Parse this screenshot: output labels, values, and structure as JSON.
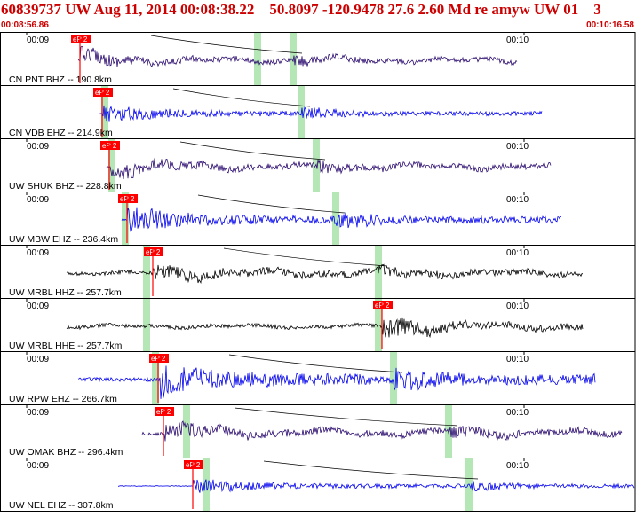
{
  "header": {
    "title": "60839737 UW Aug 11, 2014 00:08:38.22    50.8097 -120.9478 27.6 2.60 Md re amyw UW 01    3",
    "start_time": "00:08:56.86",
    "end_time": "00:10:16.58"
  },
  "colors": {
    "title": "#cc0000",
    "pick_box": "#ff0000",
    "window_shade": "#b5e6b5",
    "border": "#000000",
    "trace_purple": "#2a0a6e",
    "trace_blue": "#0000ee",
    "trace_black": "#000000"
  },
  "traces": [
    {
      "label": "CN PNT BHZ -- 190.8km",
      "color": "purple",
      "tick_left": "00:09",
      "tick_right": "00:10",
      "pick": "eP 2",
      "pick_x": 90,
      "shades": [
        290,
        330
      ],
      "onset": 88,
      "end": 582,
      "amp": 0.55,
      "noise": 0.18
    },
    {
      "label": "CN VDB EHZ -- 214.9km",
      "color": "blue",
      "tick_left": "",
      "tick_right": "",
      "pick": "eP 2",
      "pick_x": 115,
      "shades": [
        118,
        339
      ],
      "onset": 112,
      "end": 610,
      "amp": 0.35,
      "noise": 0.06
    },
    {
      "label": "UW SHUK BHZ -- 228.8km",
      "color": "purple",
      "tick_left": "00:09",
      "tick_right": "00:10",
      "pick": "eP 2",
      "pick_x": 123,
      "shades": [
        126,
        356
      ],
      "onset": 120,
      "end": 620,
      "amp": 0.55,
      "noise": 0.25
    },
    {
      "label": "UW MBW EHZ -- 236.4km",
      "color": "blue",
      "tick_left": "00:09",
      "tick_right": "00:10",
      "pick": "eP 2",
      "pick_x": 143,
      "shades": [
        141,
        378
      ],
      "onset": 137,
      "end": 632,
      "amp": 0.5,
      "noise": 0.08
    },
    {
      "label": "UW MRBL HHZ -- 257.7km",
      "color": "black",
      "tick_left": "00:09",
      "tick_right": "00:10",
      "pick": "eP 2",
      "pick_x": 172,
      "shades": [
        165,
        426
      ],
      "onset": 75,
      "end": 656,
      "amp": 0.5,
      "noise": 0.35
    },
    {
      "label": "UW MRBL HHE -- 257.7km",
      "color": "black",
      "tick_left": "00:09",
      "tick_right": "00:10",
      "pick": "eP 2",
      "pick_x": 430,
      "shades": [
        165,
        426
      ],
      "onset": 75,
      "end": 656,
      "amp": 0.5,
      "noise": 0.35
    },
    {
      "label": "UW RPW EHZ -- 266.7km",
      "color": "blue",
      "tick_left": "00:09",
      "tick_right": "00:10",
      "pick": "eP 2",
      "pick_x": 178,
      "shades": [
        175,
        443
      ],
      "onset": 88,
      "end": 670,
      "amp": 0.6,
      "noise": 0.15
    },
    {
      "label": "UW OMAK BHZ -- 296.4km",
      "color": "purple",
      "tick_left": "00:09",
      "tick_right": "00:10",
      "pick": "eP 2",
      "pick_x": 184,
      "shades": [
        210,
        505
      ],
      "onset": 160,
      "end": 700,
      "amp": 0.6,
      "noise": 0.25
    },
    {
      "label": "UW NEL EHZ -- 307.8km",
      "color": "blue",
      "tick_left": "00:09",
      "tick_right": "00:10",
      "pick": "eP 2",
      "pick_x": 217,
      "shades": [
        232,
        528
      ],
      "onset": 133,
      "end": 716,
      "amp": 0.3,
      "noise": 0.05
    }
  ]
}
